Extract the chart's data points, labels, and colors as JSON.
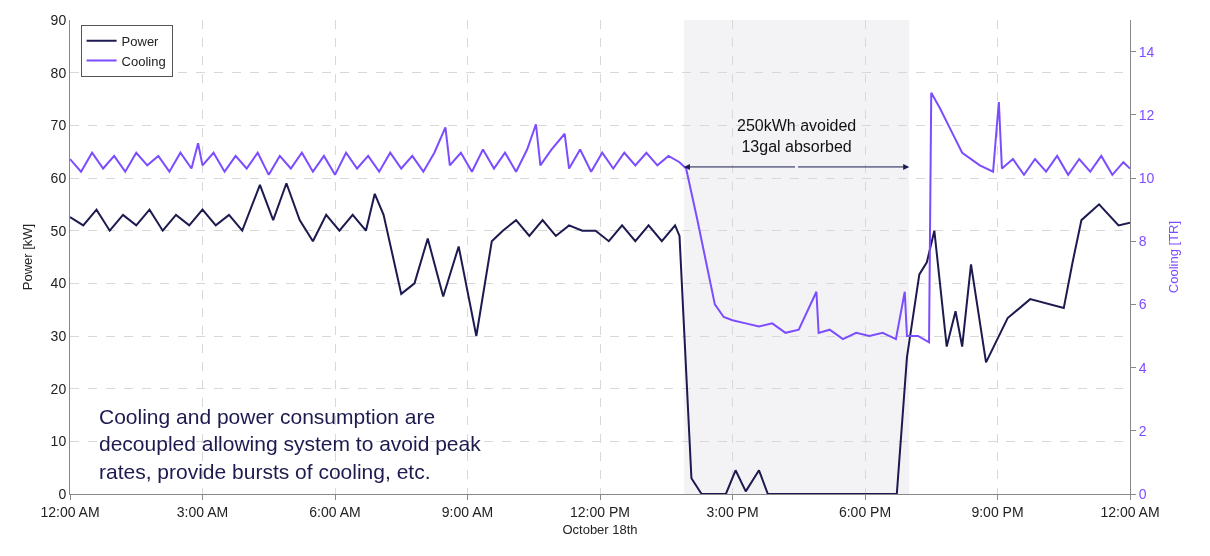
{
  "chart_data": {
    "type": "line",
    "xlabel": "October 18th",
    "ylabel": "Power [kW]",
    "y2label": "Cooling [TR]",
    "xlim": [
      0,
      24
    ],
    "xticks": [
      {
        "value": 0,
        "label": "12:00 AM"
      },
      {
        "value": 3,
        "label": "3:00 AM"
      },
      {
        "value": 6,
        "label": "6:00 AM"
      },
      {
        "value": 9,
        "label": "9:00 AM"
      },
      {
        "value": 12,
        "label": "12:00 PM"
      },
      {
        "value": 15,
        "label": "3:00 PM"
      },
      {
        "value": 18,
        "label": "6:00 PM"
      },
      {
        "value": 21,
        "label": "9:00 PM"
      },
      {
        "value": 24,
        "label": "12:00 AM"
      }
    ],
    "ylim": [
      0,
      90
    ],
    "yticks": [
      0,
      10,
      20,
      30,
      40,
      50,
      60,
      70,
      80,
      90
    ],
    "y2lim": [
      0,
      15
    ],
    "y2ticks": [
      0,
      2,
      4,
      6,
      8,
      10,
      12,
      14
    ],
    "grid": true,
    "legend": "top left",
    "line_style": "solid",
    "marker": "none",
    "series": [
      {
        "name": "Power",
        "color": "#1c1a4f",
        "x": [
          0,
          0.3,
          0.6,
          0.9,
          1.2,
          1.5,
          1.8,
          2.1,
          2.4,
          2.7,
          3.0,
          3.3,
          3.6,
          3.9,
          4.3,
          4.6,
          4.9,
          5.2,
          5.5,
          5.8,
          6.1,
          6.4,
          6.7,
          6.9,
          7.1,
          7.5,
          7.8,
          8.1,
          8.45,
          8.8,
          9.2,
          9.55,
          9.8,
          10.1,
          10.4,
          10.7,
          11.0,
          11.3,
          11.6,
          11.9,
          12.2,
          12.5,
          12.8,
          13.1,
          13.4,
          13.7,
          13.8,
          14.07,
          14.3,
          14.85,
          15.07,
          15.3,
          15.6,
          15.8,
          18.72,
          18.95,
          19.23,
          19.4,
          19.57,
          19.85,
          20.05,
          20.2,
          20.4,
          20.74,
          21.23,
          21.74,
          22.5,
          22.7,
          22.9,
          23.3,
          23.74,
          24
        ],
        "values": [
          52.6,
          51,
          54,
          50,
          53,
          51,
          54,
          50,
          53,
          51,
          54,
          51,
          53,
          50,
          58.7,
          52,
          59,
          52,
          48,
          53,
          50,
          53,
          50,
          57,
          53,
          38,
          40,
          48.5,
          37.5,
          47,
          30,
          48,
          50,
          52,
          49,
          52,
          49,
          51,
          50,
          50,
          48,
          51,
          48,
          51,
          48,
          51,
          49,
          3,
          0,
          0,
          4.5,
          0.5,
          4.5,
          0,
          0,
          26,
          41.7,
          44,
          50,
          28,
          34.7,
          28,
          43.6,
          25,
          33.4,
          37,
          35.3,
          44,
          52,
          55,
          51,
          51.5
        ]
      },
      {
        "name": "Cooling",
        "color": "#7c4dff",
        "axis": "y2",
        "x": [
          0,
          0.25,
          0.5,
          0.75,
          1,
          1.25,
          1.5,
          1.75,
          2,
          2.25,
          2.5,
          2.75,
          2.9,
          3.0,
          3.25,
          3.5,
          3.75,
          4,
          4.25,
          4.5,
          4.75,
          5,
          5.25,
          5.5,
          5.75,
          6,
          6.25,
          6.5,
          6.75,
          7,
          7.25,
          7.5,
          7.75,
          8,
          8.25,
          8.5,
          8.6,
          8.85,
          9.1,
          9.35,
          9.6,
          9.85,
          10.1,
          10.35,
          10.55,
          10.65,
          10.9,
          11.2,
          11.3,
          11.55,
          11.8,
          12.05,
          12.3,
          12.55,
          12.8,
          13.05,
          13.3,
          13.55,
          13.8,
          13.95,
          14.2,
          14.6,
          14.8,
          15.0,
          15.3,
          15.6,
          15.9,
          16.2,
          16.5,
          16.9,
          16.95,
          17.2,
          17.5,
          17.8,
          18.1,
          18.4,
          18.7,
          18.9,
          18.95,
          19.2,
          19.45,
          19.5,
          19.7,
          19.95,
          20.2,
          20.6,
          20.9,
          21.03,
          21.1,
          21.35,
          21.6,
          21.85,
          22.1,
          22.35,
          22.6,
          22.85,
          23.1,
          23.35,
          23.6,
          23.85,
          24
        ],
        "values": [
          10.6,
          10.2,
          10.8,
          10.3,
          10.7,
          10.2,
          10.8,
          10.4,
          10.7,
          10.2,
          10.8,
          10.3,
          11.1,
          10.4,
          10.8,
          10.2,
          10.7,
          10.3,
          10.8,
          10.1,
          10.7,
          10.3,
          10.8,
          10.2,
          10.7,
          10.1,
          10.8,
          10.3,
          10.7,
          10.2,
          10.8,
          10.3,
          10.7,
          10.2,
          10.8,
          11.6,
          10.4,
          10.8,
          10.2,
          10.9,
          10.3,
          10.8,
          10.2,
          10.9,
          11.7,
          10.4,
          10.9,
          11.4,
          10.3,
          10.9,
          10.2,
          10.8,
          10.3,
          10.8,
          10.4,
          10.8,
          10.4,
          10.7,
          10.5,
          10.3,
          8.7,
          6.0,
          5.6,
          5.5,
          5.4,
          5.3,
          5.4,
          5.1,
          5.2,
          6.4,
          5.1,
          5.2,
          4.9,
          5.1,
          5.0,
          5.1,
          4.9,
          6.4,
          5.0,
          5.0,
          4.8,
          12.7,
          12.2,
          11.5,
          10.8,
          10.4,
          10.2,
          12.4,
          10.3,
          10.6,
          10.1,
          10.6,
          10.2,
          10.7,
          10.1,
          10.6,
          10.2,
          10.7,
          10.1,
          10.5,
          10.3
        ]
      }
    ],
    "bands": [
      {
        "axis": "x",
        "from": 13.9,
        "to": 19.0,
        "label": "250kWh avoided\n13gal absorbed",
        "color": "#1c1a4f"
      }
    ],
    "annotations": [
      "Cooling and power consumption are\ndecoupled allowing system to avoid peak\nrates, provide bursts of cooling, etc."
    ]
  }
}
